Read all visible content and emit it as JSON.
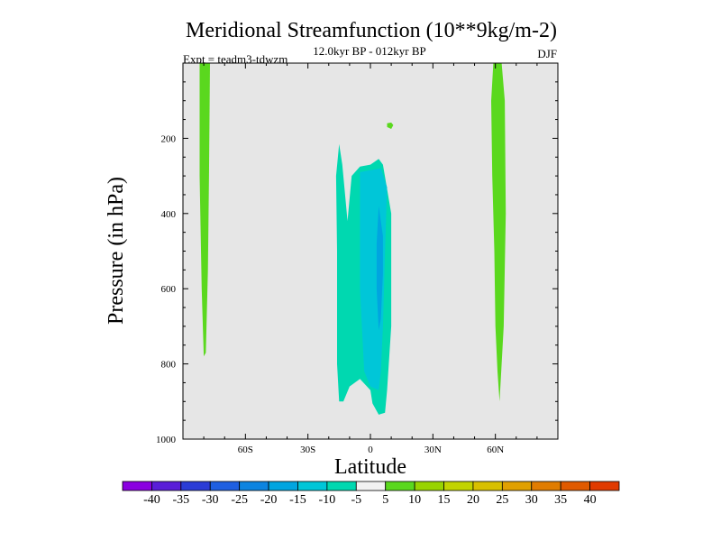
{
  "chart_data": {
    "type": "contour",
    "title": "Meridional Streamfunction (10**9kg/m-2)",
    "subtitle_center": "12.0kyr BP - 012kyr BP",
    "subtitle_left": "Expt = teadm3-tdwzm",
    "subtitle_right": "DJF",
    "xlabel": "Latitude",
    "ylabel": "Pressure (in hPa)",
    "xlim": [
      -90,
      90
    ],
    "ylim": [
      1000,
      0
    ],
    "x_ticks": [
      {
        "value": -60,
        "label": "60S"
      },
      {
        "value": -30,
        "label": "30S"
      },
      {
        "value": 0,
        "label": "0"
      },
      {
        "value": 30,
        "label": "30N"
      },
      {
        "value": 60,
        "label": "60N"
      }
    ],
    "y_ticks": [
      {
        "value": 200,
        "label": "200"
      },
      {
        "value": 400,
        "label": "400"
      },
      {
        "value": 600,
        "label": "600"
      },
      {
        "value": 800,
        "label": "800"
      },
      {
        "value": 1000,
        "label": "1000"
      }
    ],
    "background_color": "#e6e6e6",
    "colorbar": {
      "levels": [
        "-40",
        "-35",
        "-30",
        "-25",
        "-20",
        "-15",
        "-10",
        "-5",
        "5",
        "10",
        "15",
        "20",
        "25",
        "30",
        "35",
        "40"
      ],
      "colors": [
        "#8a00e0",
        "#5a1ed8",
        "#2b3cd6",
        "#1f5fe0",
        "#0d84e0",
        "#00a5e0",
        "#00c6d8",
        "#00d8b0",
        "#f2f2f2",
        "#5ad81e",
        "#98d400",
        "#c2d400",
        "#d8c000",
        "#e0a000",
        "#e07c00",
        "#e05a00",
        "#e03a00"
      ]
    },
    "regions": [
      {
        "name": "positive-band-high-south",
        "level": "5",
        "color": "#5ad81e",
        "points": [
          [
            -82,
            0
          ],
          [
            -77,
            0
          ],
          [
            -77.5,
            300
          ],
          [
            -78,
            550
          ],
          [
            -79,
            770
          ],
          [
            -80,
            780
          ],
          [
            -81,
            600
          ],
          [
            -82,
            300
          ]
        ]
      },
      {
        "name": "positive-blob-upper-tropics",
        "level": "5",
        "color": "#5ad81e",
        "points": [
          [
            8,
            160
          ],
          [
            10,
            158
          ],
          [
            11,
            165
          ],
          [
            10,
            175
          ],
          [
            8,
            170
          ]
        ]
      },
      {
        "name": "positive-band-high-north",
        "level": "5",
        "color": "#5ad81e",
        "points": [
          [
            59,
            0
          ],
          [
            63,
            0
          ],
          [
            64.5,
            100
          ],
          [
            65,
            400
          ],
          [
            64,
            700
          ],
          [
            62,
            900
          ],
          [
            61,
            820
          ],
          [
            60,
            700
          ],
          [
            59.5,
            500
          ],
          [
            58.5,
            300
          ],
          [
            58,
            100
          ]
        ]
      },
      {
        "name": "negative-cell-outer",
        "level": "-5",
        "color": "#00d8b0",
        "points": [
          [
            -15,
            215
          ],
          [
            -13.5,
            270
          ],
          [
            -11,
            420
          ],
          [
            -9,
            300
          ],
          [
            -5,
            275
          ],
          [
            0,
            270
          ],
          [
            4,
            255
          ],
          [
            6,
            270
          ],
          [
            10,
            400
          ],
          [
            10,
            700
          ],
          [
            8,
            870
          ],
          [
            7,
            930
          ],
          [
            4,
            935
          ],
          [
            1,
            905
          ],
          [
            0,
            870
          ],
          [
            -5,
            840
          ],
          [
            -10,
            860
          ],
          [
            -13,
            900
          ],
          [
            -15,
            900
          ],
          [
            -16,
            800
          ],
          [
            -16,
            500
          ],
          [
            -16.5,
            300
          ]
        ]
      },
      {
        "name": "negative-cell-inner",
        "level": "-10",
        "color": "#00c6d8",
        "points": [
          [
            -5,
            290
          ],
          [
            0,
            285
          ],
          [
            5,
            280
          ],
          [
            8,
            330
          ],
          [
            7,
            500
          ],
          [
            6,
            700
          ],
          [
            5,
            820
          ],
          [
            4,
            870
          ],
          [
            0,
            860
          ],
          [
            -3,
            820
          ],
          [
            -5,
            600
          ],
          [
            -5,
            400
          ]
        ]
      },
      {
        "name": "negative-cell-core",
        "level": "-15",
        "color": "#00a5e0",
        "points": [
          [
            4,
            380
          ],
          [
            6,
            460
          ],
          [
            6,
            560
          ],
          [
            5,
            680
          ],
          [
            4,
            710
          ],
          [
            3,
            600
          ],
          [
            3,
            480
          ]
        ]
      }
    ]
  }
}
